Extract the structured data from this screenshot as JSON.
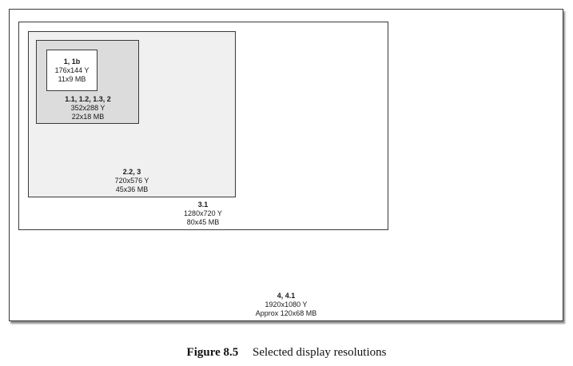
{
  "boxes": [
    {
      "name": "4, 4.1",
      "resolution": "1920x1080 Y",
      "size": "Approx 120x68 MB"
    },
    {
      "name": "3.1",
      "resolution": "1280x720 Y",
      "size": "80x45 MB"
    },
    {
      "name": "2.2, 3",
      "resolution": "720x576 Y",
      "size": "45x36 MB"
    },
    {
      "name": "1.1, 1.2, 1.3, 2",
      "resolution": "352x288 Y",
      "size": "22x18 MB"
    },
    {
      "name": "1, 1b",
      "resolution": "176x144 Y",
      "size": "11x9 MB"
    }
  ],
  "caption": {
    "number": "Figure 8.5",
    "text": "Selected display resolutions"
  },
  "colors": {
    "border": "#3a3a3a",
    "fill_level_2": "#f0f0f0",
    "fill_level_1": "#dcdcdc"
  }
}
